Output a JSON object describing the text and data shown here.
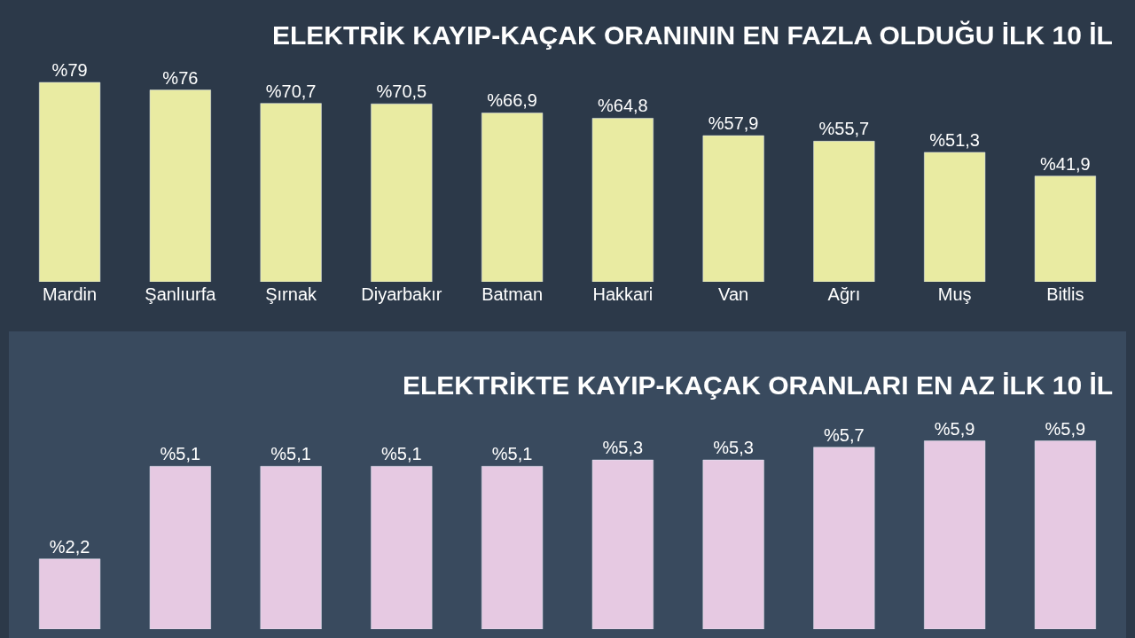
{
  "chart_data": [
    {
      "type": "bar",
      "title": "ELEKTRİK KAYIP-KAÇAK ORANININ EN FAZLA OLDUĞU İLK 10 İL",
      "categories": [
        "Mardin",
        "Şanlıurfa",
        "Şırnak",
        "Diyarbakır",
        "Batman",
        "Hakkari",
        "Van",
        "Ağrı",
        "Muş",
        "Bitlis"
      ],
      "values": [
        79,
        76,
        70.7,
        70.5,
        66.9,
        64.8,
        57.9,
        55.7,
        51.3,
        41.9
      ],
      "value_labels": [
        "%79",
        "%76",
        "%70,7",
        "%70,5",
        "%66,9",
        "%64,8",
        "%57,9",
        "%55,7",
        "%51,3",
        "%41,9"
      ],
      "color": "#e9eba2"
    },
    {
      "type": "bar",
      "title": "ELEKTRİKTE KAYIP-KAÇAK ORANLARI EN AZ İLK 10 İL",
      "categories": [
        null,
        null,
        null,
        null,
        null,
        null,
        null,
        null,
        null,
        null
      ],
      "values": [
        2.2,
        5.1,
        5.1,
        5.1,
        5.1,
        5.3,
        5.3,
        5.7,
        5.9,
        5.9
      ],
      "value_labels": [
        "%2,2",
        "%5,1",
        "%5,1",
        "%5,1",
        "%5,1",
        "%5,3",
        "%5,3",
        "%5,7",
        "%5,9",
        "%5,9"
      ],
      "color": "#e6c9e2"
    }
  ]
}
